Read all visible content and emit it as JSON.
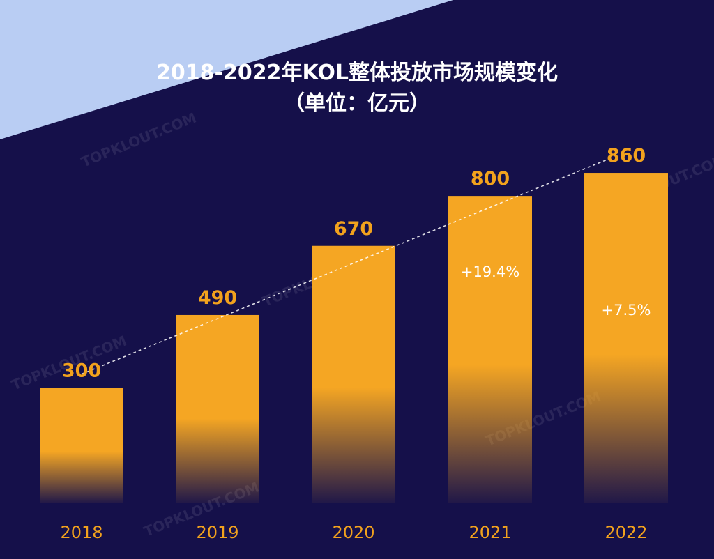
{
  "chart_data": {
    "type": "bar",
    "title": "2018-2022年KOL整体投放市场规模变化",
    "subtitle": "（单位：亿元）",
    "categories": [
      "2018",
      "2019",
      "2020",
      "2021",
      "2022"
    ],
    "values": [
      300,
      490,
      670,
      800,
      860
    ],
    "value_labels": [
      "300",
      "490",
      "670",
      "800",
      "860"
    ],
    "growth_annotations": [
      {
        "category": "2021",
        "text": "+19.4%"
      },
      {
        "category": "2022",
        "text": "+7.5%"
      }
    ],
    "trend_line": true,
    "grid": false,
    "legend": "none",
    "ylim": [
      0,
      900
    ],
    "colors": {
      "background": "#15104a",
      "corner_accent": "#b9cdf3",
      "bar": "#f5a623",
      "value_text": "#f2a21d",
      "title_text": "#ffffff"
    }
  },
  "watermark": "TOPKLOUT.COM"
}
